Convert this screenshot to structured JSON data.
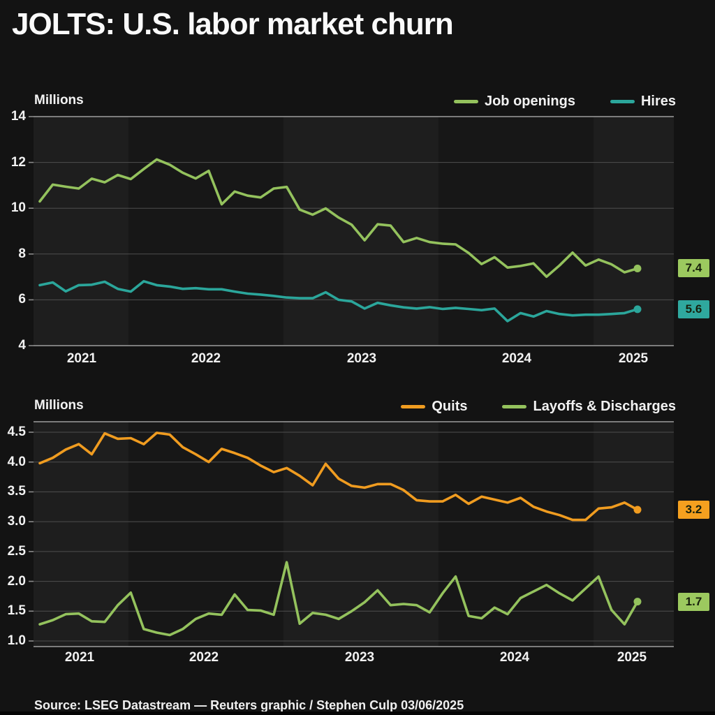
{
  "title": "JOLTS: U.S. labor market churn",
  "source_line": "Source: LSEG Datastream — Reuters graphic / Stephen Culp 03/06/2025",
  "colors": {
    "background": "#131313",
    "band_light": "#1e1e1e",
    "band_dark": "#171717",
    "gridline": "#4f4f4f",
    "frame": "#9e9e9e",
    "text": "#f2f2f2",
    "job_openings": "#94c25d",
    "hires": "#2ba69b",
    "quits": "#f09c20",
    "layoffs": "#94c25d"
  },
  "chart_data": [
    {
      "type": "line",
      "units_label": "Millions",
      "legend_position": "top-right",
      "grid": true,
      "ylim": [
        4,
        14
      ],
      "y_ticks": [
        "14",
        "12",
        "10",
        "8",
        "6",
        "4"
      ],
      "x_ticks": [
        "2021",
        "2022",
        "2023",
        "2024",
        "2025"
      ],
      "x_note": "monthly, mid-2021 through early 2025",
      "series": [
        {
          "name": "Job openings",
          "color": "#94c25d",
          "end_label": "7.4",
          "badge_bg": "#9cc95f",
          "values": [
            10.3,
            11.03,
            10.94,
            10.86,
            11.29,
            11.13,
            11.45,
            11.27,
            11.71,
            12.13,
            11.9,
            11.55,
            11.3,
            11.63,
            10.17,
            10.73,
            10.55,
            10.47,
            10.86,
            10.93,
            9.94,
            9.72,
            9.99,
            9.59,
            9.28,
            8.6,
            9.3,
            9.24,
            8.52,
            8.7,
            8.52,
            8.45,
            8.42,
            8.05,
            7.56,
            7.86,
            7.41,
            7.48,
            7.59,
            7.01,
            7.5,
            8.06,
            7.5,
            7.76,
            7.55,
            7.2,
            7.37
          ]
        },
        {
          "name": "Hires",
          "color": "#2ba69b",
          "end_label": "5.6",
          "badge_bg": "#2fa89e",
          "values": [
            6.64,
            6.76,
            6.37,
            6.64,
            6.66,
            6.79,
            6.48,
            6.36,
            6.81,
            6.64,
            6.58,
            6.48,
            6.51,
            6.46,
            6.46,
            6.36,
            6.27,
            6.23,
            6.17,
            6.1,
            6.07,
            6.07,
            6.33,
            6.0,
            5.93,
            5.62,
            5.87,
            5.76,
            5.67,
            5.62,
            5.68,
            5.6,
            5.65,
            5.6,
            5.55,
            5.62,
            5.07,
            5.42,
            5.27,
            5.51,
            5.38,
            5.32,
            5.35,
            5.35,
            5.38,
            5.42,
            5.59
          ]
        }
      ]
    },
    {
      "type": "line",
      "units_label": "Millions",
      "legend_position": "top-right",
      "grid": true,
      "ylim": [
        1.0,
        4.5
      ],
      "y_ticks": [
        "4.5",
        "4.0",
        "3.5",
        "3.0",
        "2.5",
        "2.0",
        "1.5",
        "1.0"
      ],
      "x_ticks": [
        "2021",
        "2022",
        "2023",
        "2024",
        "2025"
      ],
      "x_note": "monthly, mid-2021 through early 2025",
      "series": [
        {
          "name": "Quits",
          "color": "#f09c20",
          "end_label": "3.2",
          "badge_bg": "#f5a01f",
          "values": [
            3.98,
            4.07,
            4.21,
            4.3,
            4.13,
            4.48,
            4.39,
            4.4,
            4.3,
            4.49,
            4.46,
            4.25,
            4.13,
            4.0,
            4.22,
            4.15,
            4.07,
            3.94,
            3.83,
            3.9,
            3.77,
            3.61,
            3.97,
            3.72,
            3.6,
            3.57,
            3.63,
            3.63,
            3.53,
            3.36,
            3.34,
            3.34,
            3.45,
            3.3,
            3.42,
            3.37,
            3.32,
            3.4,
            3.25,
            3.17,
            3.11,
            3.03,
            3.03,
            3.22,
            3.24,
            3.32,
            3.2
          ]
        },
        {
          "name": "Layoffs & Discharges",
          "color": "#94c25d",
          "end_label": "1.7",
          "badge_bg": "#9cc95f",
          "values": [
            1.28,
            1.35,
            1.45,
            1.46,
            1.33,
            1.32,
            1.6,
            1.81,
            1.2,
            1.14,
            1.1,
            1.2,
            1.37,
            1.46,
            1.44,
            1.78,
            1.52,
            1.51,
            1.44,
            2.32,
            1.29,
            1.47,
            1.44,
            1.37,
            1.5,
            1.65,
            1.85,
            1.6,
            1.62,
            1.6,
            1.48,
            1.8,
            2.08,
            1.42,
            1.38,
            1.56,
            1.45,
            1.72,
            1.83,
            1.94,
            1.8,
            1.68,
            1.88,
            2.08,
            1.52,
            1.28,
            1.66
          ]
        }
      ]
    }
  ]
}
